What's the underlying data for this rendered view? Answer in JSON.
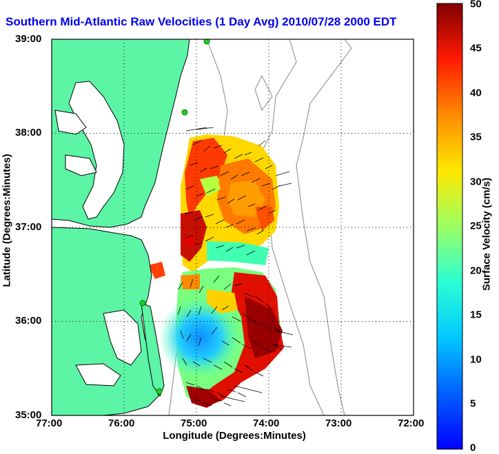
{
  "title": "Southern Mid-Atlantic Raw Velocities (1 Day Avg) 2010/07/28 2000 EDT",
  "x_axis": {
    "label": "Longitude (Degrees:Minutes)",
    "ticks": [
      "77:00",
      "76:00",
      "75:00",
      "74:00",
      "73:00",
      "72:00"
    ]
  },
  "y_axis": {
    "label": "Latitude (Degrees:Minutes)",
    "ticks": [
      "39:00",
      "38:00",
      "37:00",
      "36:00",
      "35:00"
    ]
  },
  "colorbar": {
    "label": "Surface Velocity (cm/s)",
    "ticks": [
      "50",
      "45",
      "40",
      "35",
      "30",
      "25",
      "20",
      "15",
      "10",
      "5",
      "0"
    ],
    "range": [
      0,
      50
    ],
    "colormap": "jet"
  },
  "colors": {
    "title": "#0000ee",
    "land": "#5cf5a6",
    "coastline": "#000000",
    "bathymetry": "#999999",
    "station": "#22cc22",
    "grid": "#000000"
  },
  "map": {
    "extent_lon": [
      -77,
      -72
    ],
    "extent_lat": [
      35,
      39
    ]
  }
}
